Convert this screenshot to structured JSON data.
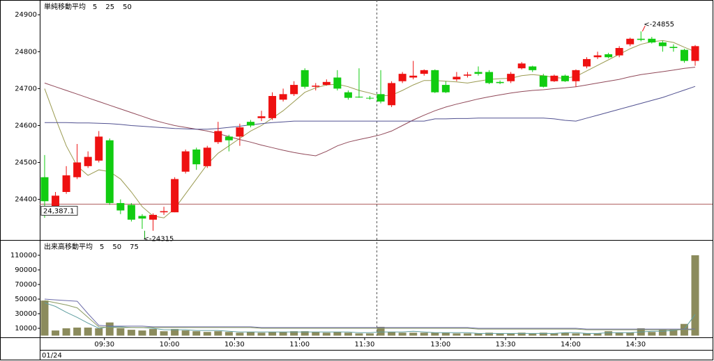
{
  "chart_data": [
    {
      "type": "candlestick",
      "legend_title": "単純移動平均",
      "up_color": "#ee1111",
      "down_color": "#11cc11",
      "open": [
        24460,
        24375,
        24420,
        24460,
        24490,
        24505,
        24560,
        24390,
        24385,
        24355,
        24345,
        24365,
        24365,
        24475,
        24535,
        24490,
        24555,
        24570,
        24570,
        24610,
        24620,
        24620,
        24670,
        24685,
        24750,
        24705,
        24710,
        24730,
        24690,
        24678,
        24675,
        24685,
        24655,
        24720,
        24730,
        24740,
        24750,
        24710,
        24725,
        24735,
        24745,
        24745,
        24718,
        24720,
        24755,
        24760,
        24735,
        24720,
        24735,
        24720,
        24760,
        24785,
        24793,
        24790,
        24820,
        24835,
        24835,
        24825,
        24813,
        24805,
        24775
      ],
      "high": [
        24520,
        24420,
        24490,
        24550,
        24530,
        24585,
        24565,
        24400,
        24390,
        24360,
        24362,
        24380,
        24460,
        24535,
        24540,
        24545,
        24610,
        24575,
        24605,
        24615,
        24640,
        24690,
        24700,
        24720,
        24755,
        24715,
        24725,
        24750,
        24695,
        24755,
        24680,
        24750,
        24720,
        24745,
        24775,
        24752,
        24752,
        24720,
        24745,
        24745,
        24760,
        24750,
        24722,
        24745,
        24772,
        24762,
        24740,
        24738,
        24738,
        24752,
        24785,
        24800,
        24797,
        24815,
        24838,
        24855,
        24840,
        24830,
        24820,
        24808,
        24818
      ],
      "low": [
        24350,
        24360,
        24415,
        24455,
        24485,
        24500,
        24385,
        24360,
        24340,
        24320,
        24315,
        24358,
        24365,
        24470,
        24480,
        24485,
        24550,
        24530,
        24545,
        24595,
        24612,
        24615,
        24665,
        24680,
        24700,
        24695,
        24708,
        24695,
        24670,
        24675,
        24670,
        24660,
        24650,
        24715,
        24725,
        24735,
        24688,
        24688,
        24720,
        24730,
        24735,
        24712,
        24712,
        24715,
        24752,
        24745,
        24703,
        24718,
        24718,
        24705,
        24755,
        24780,
        24782,
        24785,
        24815,
        24828,
        24822,
        24800,
        24800,
        24770,
        24762
      ],
      "close": [
        24395,
        24410,
        24465,
        24500,
        24515,
        24570,
        24390,
        24370,
        24345,
        24348,
        24358,
        24368,
        24455,
        24530,
        24495,
        24540,
        24585,
        24560,
        24595,
        24600,
        24625,
        24680,
        24685,
        24710,
        24705,
        24708,
        24718,
        24700,
        24675,
        24676,
        24674,
        24665,
        24715,
        24740,
        24735,
        24750,
        24690,
        24690,
        24732,
        24738,
        24740,
        24715,
        24715,
        24740,
        24768,
        24750,
        24705,
        24735,
        24720,
        24750,
        24780,
        24790,
        24785,
        24810,
        24835,
        24832,
        24825,
        24815,
        24810,
        24775,
        24815
      ],
      "series": [
        {
          "name": "5",
          "color": "#9a9a50",
          "values": [
            24700,
            24620,
            24545,
            24490,
            24465,
            24480,
            24475,
            24455,
            24420,
            24380,
            24355,
            24350,
            24375,
            24415,
            24455,
            24495,
            24525,
            24545,
            24565,
            24585,
            24600,
            24620,
            24640,
            24665,
            24690,
            24702,
            24710,
            24712,
            24705,
            24695,
            24688,
            24680,
            24682,
            24695,
            24710,
            24722,
            24722,
            24720,
            24718,
            24715,
            24720,
            24725,
            24727,
            24728,
            24735,
            24738,
            24735,
            24730,
            24728,
            24733,
            24748,
            24763,
            24778,
            24793,
            24808,
            24820,
            24827,
            24830,
            24825,
            24812,
            24800
          ]
        },
        {
          "name": "25",
          "color": "#904858",
          "values": [
            24715,
            24705,
            24695,
            24685,
            24675,
            24665,
            24655,
            24645,
            24635,
            24625,
            24615,
            24607,
            24600,
            24595,
            24590,
            24585,
            24578,
            24570,
            24562,
            24555,
            24547,
            24540,
            24533,
            24527,
            24522,
            24518,
            24530,
            24545,
            24555,
            24562,
            24568,
            24575,
            24585,
            24600,
            24615,
            24628,
            24640,
            24650,
            24658,
            24665,
            24672,
            24678,
            24683,
            24688,
            24692,
            24695,
            24697,
            24700,
            24702,
            24705,
            24710,
            24715,
            24720,
            24725,
            24732,
            24738,
            24742,
            24746,
            24750,
            24755,
            24758
          ]
        },
        {
          "name": "50",
          "color": "#505090",
          "values": [
            24608,
            24608,
            24608,
            24607,
            24607,
            24606,
            24605,
            24603,
            24600,
            24598,
            24596,
            24594,
            24592,
            24591,
            24590,
            24590,
            24592,
            24595,
            24598,
            24602,
            24605,
            24608,
            24610,
            24612,
            24612,
            24612,
            24612,
            24612,
            24612,
            24612,
            24612,
            24612,
            24612,
            24612,
            24612,
            24612,
            24618,
            24618,
            24619,
            24619,
            24620,
            24620,
            24620,
            24620,
            24620,
            24620,
            24620,
            24618,
            24614,
            24612,
            24620,
            24628,
            24636,
            24644,
            24652,
            24660,
            24668,
            24676,
            24686,
            24696,
            24706
          ]
        }
      ],
      "reference_line": {
        "value": 24387.1,
        "label": "24,387.1",
        "color": "#b06060"
      },
      "annotations": [
        {
          "text": "<-24855",
          "value": 24855,
          "color": "#ee1111"
        },
        {
          "text": "<-24315",
          "value": 24315,
          "color": "#11aa11"
        }
      ],
      "ylim": [
        24290,
        24940
      ],
      "yticks": [
        24400,
        24500,
        24600,
        24700,
        24800,
        24900
      ]
    },
    {
      "type": "bar",
      "legend_title": "出来高移動平均",
      "color": "#8b8b5c",
      "date_label": "01/24",
      "categories": [
        null,
        null,
        null,
        null,
        null,
        "09:30",
        null,
        null,
        null,
        null,
        null,
        "10:00",
        null,
        null,
        null,
        null,
        null,
        "10:30",
        null,
        null,
        null,
        null,
        null,
        "11:00",
        null,
        null,
        null,
        null,
        null,
        "11:30",
        null,
        null,
        null,
        null,
        null,
        null,
        "13:00",
        null,
        null,
        null,
        null,
        null,
        "13:30",
        null,
        null,
        null,
        null,
        null,
        "14:00",
        null,
        null,
        null,
        null,
        null,
        "14:30",
        null,
        null,
        null,
        null,
        null,
        null
      ],
      "values": [
        48000,
        7000,
        10000,
        11000,
        11000,
        10000,
        18000,
        10000,
        8000,
        7000,
        9000,
        6000,
        9000,
        7000,
        6000,
        5000,
        6000,
        5000,
        4000,
        5000,
        4000,
        5000,
        5000,
        6000,
        6000,
        5000,
        4000,
        5000,
        4000,
        3000,
        3000,
        12000,
        5000,
        4000,
        4000,
        4000,
        4000,
        4000,
        3000,
        3000,
        3000,
        4000,
        3000,
        3000,
        4000,
        3000,
        4000,
        3000,
        4000,
        3000,
        3000,
        3000,
        6000,
        4000,
        4000,
        10000,
        5000,
        8000,
        8000,
        16000,
        110000
      ],
      "series": [
        {
          "name": "5",
          "color": "#5f9ea0",
          "values": [
            45000,
            40000,
            32000,
            25000,
            17000,
            10000,
            12000,
            12000,
            11000,
            11000,
            10000,
            8000,
            8000,
            8000,
            7000,
            7000,
            7000,
            6000,
            5000,
            5000,
            5000,
            5000,
            5000,
            5000,
            5000,
            5000,
            5000,
            5000,
            5000,
            4000,
            4000,
            5000,
            5000,
            5000,
            6000,
            5000,
            4000,
            4000,
            4000,
            4000,
            3000,
            3000,
            3000,
            3000,
            3000,
            3000,
            3000,
            3000,
            4000,
            4000,
            3000,
            3000,
            4000,
            4000,
            4000,
            5000,
            6000,
            6000,
            7000,
            9000,
            29000
          ]
        },
        {
          "name": "50",
          "color": "#6a6aa8",
          "values": [
            50000,
            49000,
            48000,
            47000,
            30000,
            14000,
            13000,
            13000,
            13000,
            13000,
            12000,
            12000,
            12000,
            12000,
            12000,
            12000,
            12000,
            12000,
            12000,
            12000,
            11000,
            11000,
            11000,
            11000,
            11000,
            11000,
            11000,
            11000,
            11000,
            11000,
            11000,
            11000,
            11000,
            11000,
            11000,
            11000,
            11000,
            11000,
            11000,
            11000,
            10000,
            10000,
            10000,
            10000,
            10000,
            10000,
            10000,
            10000,
            10000,
            10000,
            9000,
            9000,
            9000,
            9000,
            9000,
            9000,
            9000,
            9000,
            9000,
            9000,
            9000
          ]
        },
        {
          "name": "75",
          "color": "#8a9a60",
          "values": [
            48000,
            45000,
            42000,
            38000,
            25000,
            12000,
            11000,
            11000,
            11000,
            11000,
            11000,
            11000,
            11000,
            11000,
            11000,
            11000,
            11000,
            11000,
            11000,
            11000,
            10000,
            10000,
            10000,
            10000,
            10000,
            10000,
            10000,
            10000,
            10000,
            10000,
            10000,
            10000,
            10000,
            10000,
            10000,
            10000,
            10000,
            10000,
            10000,
            10000,
            9000,
            9000,
            9000,
            9000,
            9000,
            9000,
            9000,
            9000,
            9000,
            9000,
            8000,
            8000,
            8000,
            8000,
            8000,
            8000,
            8000,
            8000,
            8000,
            8000,
            8000
          ]
        }
      ],
      "ylim": [
        0,
        130000
      ],
      "yticks": [
        10000,
        30000,
        50000,
        70000,
        90000,
        110000
      ]
    }
  ]
}
